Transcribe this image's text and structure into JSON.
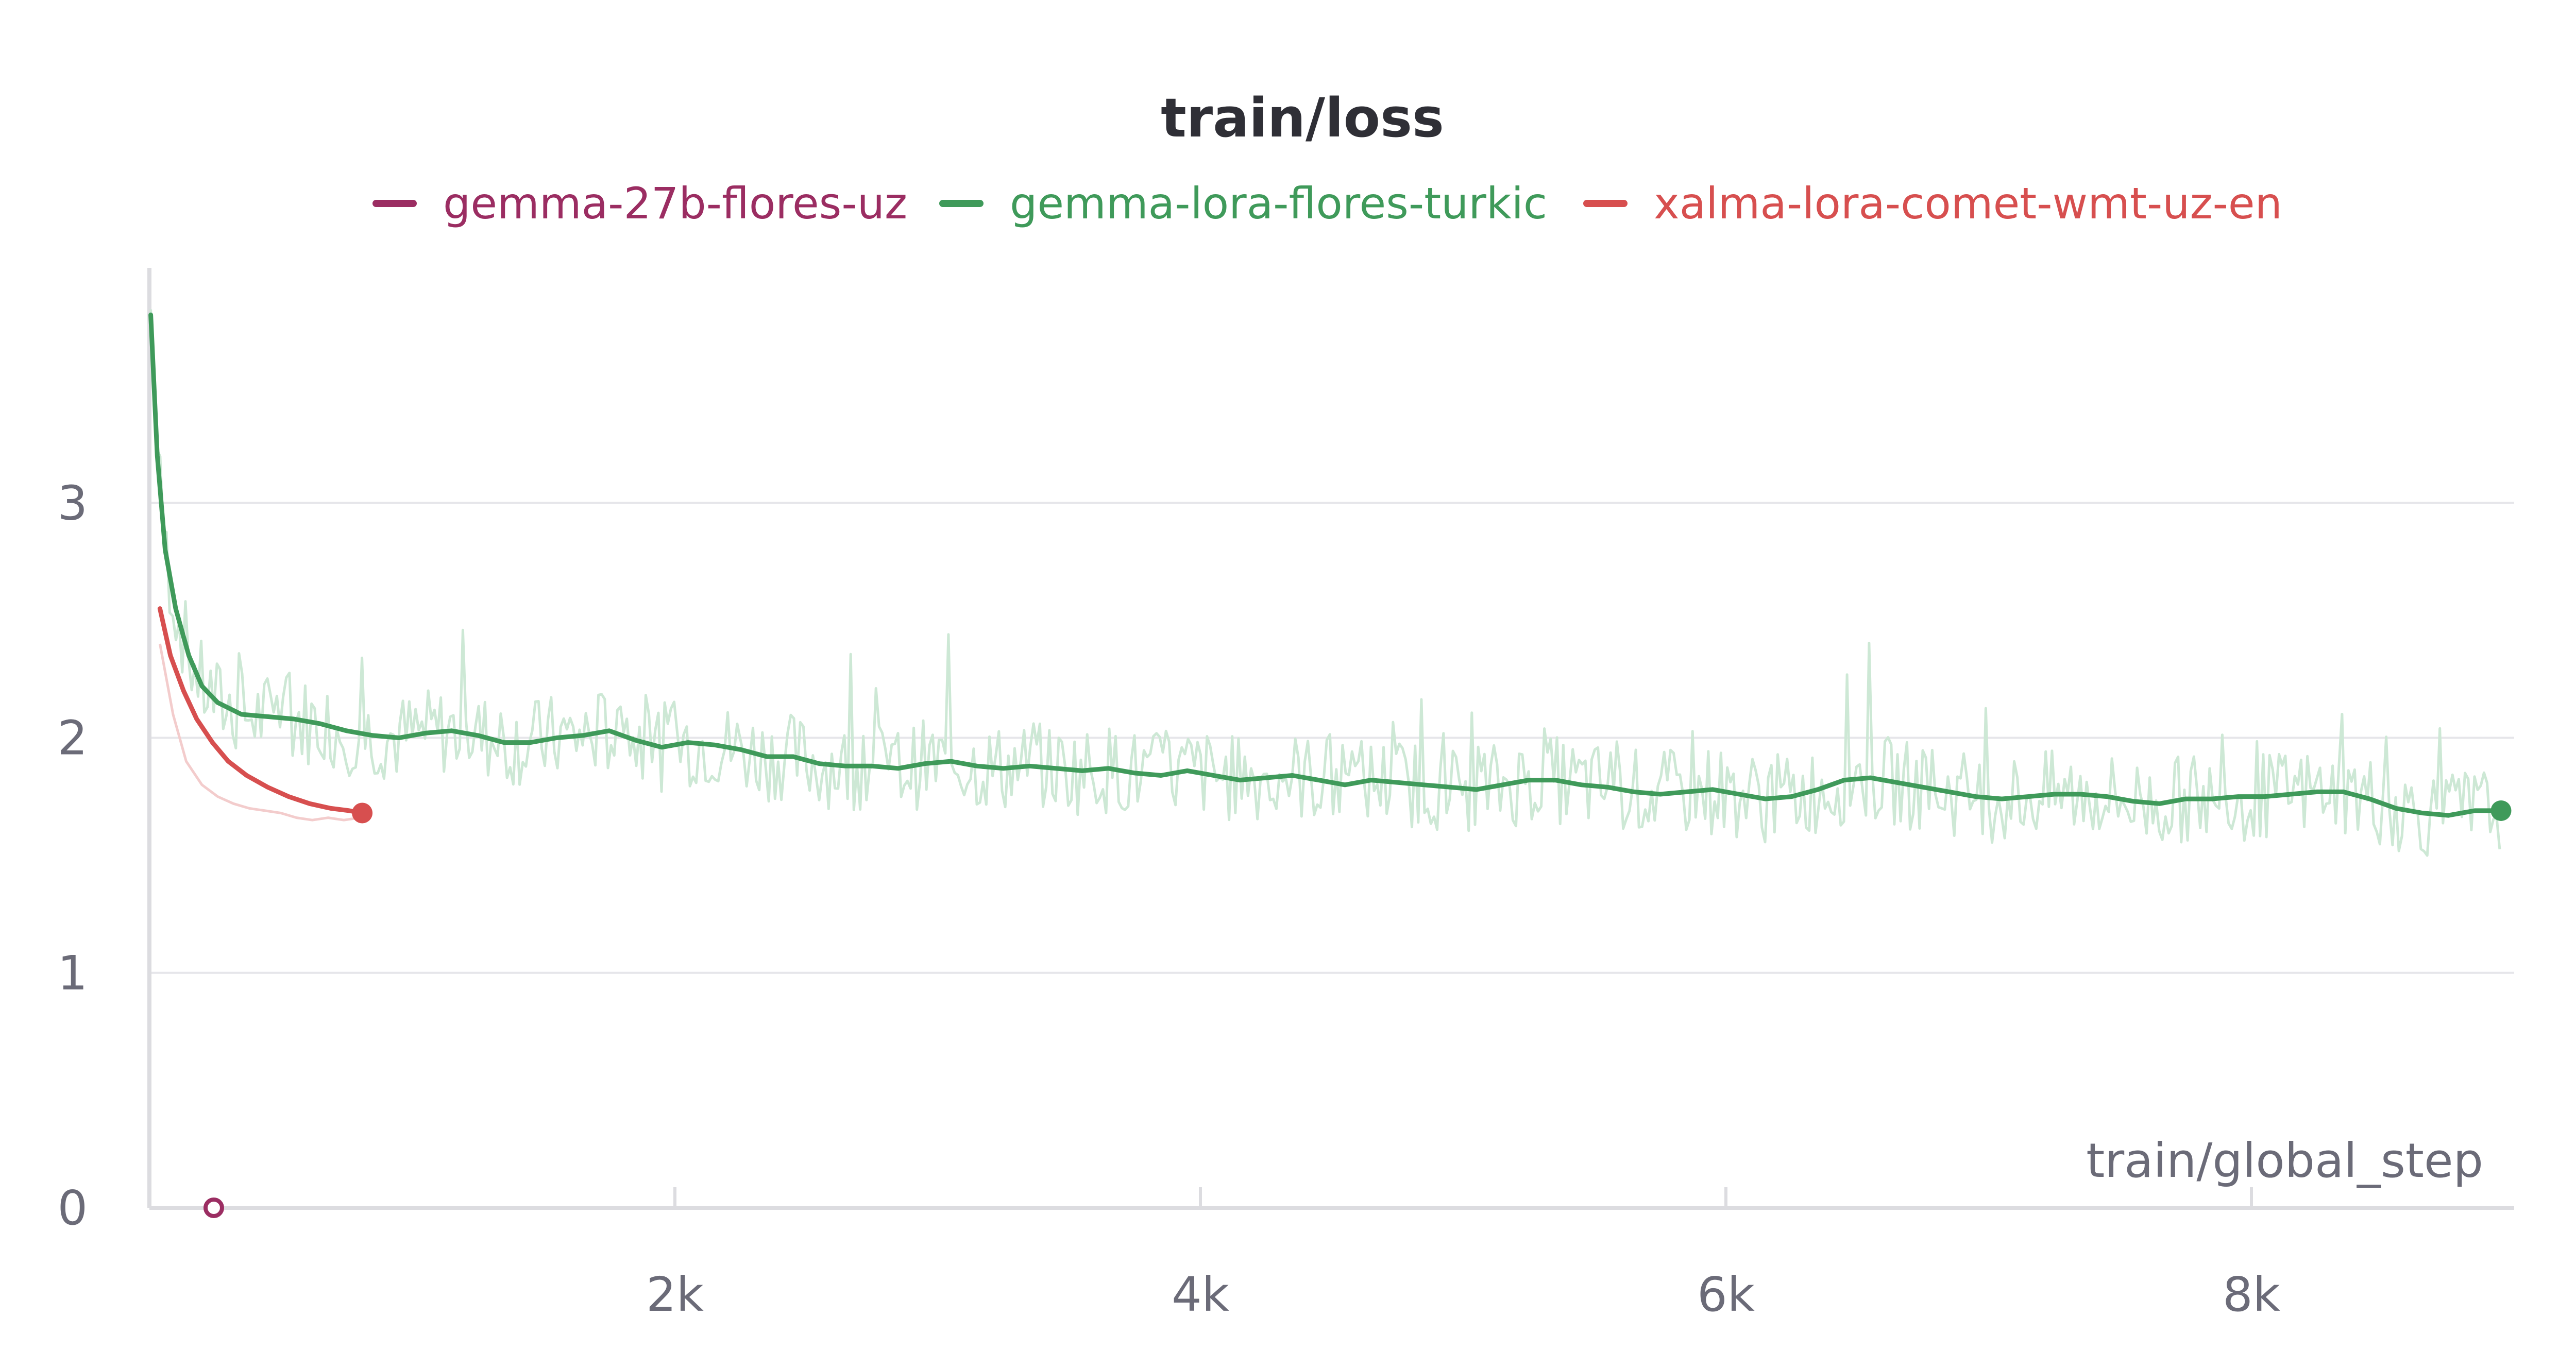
{
  "chart_data": {
    "type": "line",
    "title": "train/loss",
    "xlabel": "train/global_step",
    "ylabel": "",
    "xlim": [
      0,
      9000
    ],
    "ylim": [
      0,
      4
    ],
    "x_ticks": [
      {
        "value": 2000,
        "label": "2k"
      },
      {
        "value": 4000,
        "label": "4k"
      },
      {
        "value": 6000,
        "label": "6k"
      },
      {
        "value": 8000,
        "label": "8k"
      }
    ],
    "y_ticks": [
      {
        "value": 0,
        "label": "0"
      },
      {
        "value": 1,
        "label": "1"
      },
      {
        "value": 2,
        "label": "2"
      },
      {
        "value": 3,
        "label": "3"
      }
    ],
    "grid": true,
    "legend_position": "top",
    "series": [
      {
        "name": "gemma-27b-flores-uz",
        "color": "#9b2d62",
        "points": [
          [
            245,
            0
          ]
        ],
        "raw": []
      },
      {
        "name": "gemma-lora-flores-turkic",
        "color": "#3f9a5a",
        "raw_color": "#cde8d5",
        "points": [
          [
            5,
            3.8
          ],
          [
            30,
            3.2
          ],
          [
            60,
            2.8
          ],
          [
            100,
            2.55
          ],
          [
            150,
            2.35
          ],
          [
            200,
            2.22
          ],
          [
            260,
            2.15
          ],
          [
            350,
            2.1
          ],
          [
            450,
            2.09
          ],
          [
            550,
            2.08
          ],
          [
            650,
            2.06
          ],
          [
            750,
            2.03
          ],
          [
            850,
            2.01
          ],
          [
            950,
            2.0
          ],
          [
            1050,
            2.02
          ],
          [
            1150,
            2.03
          ],
          [
            1250,
            2.01
          ],
          [
            1350,
            1.98
          ],
          [
            1450,
            1.98
          ],
          [
            1550,
            2.0
          ],
          [
            1650,
            2.01
          ],
          [
            1750,
            2.03
          ],
          [
            1850,
            1.99
          ],
          [
            1950,
            1.96
          ],
          [
            2050,
            1.98
          ],
          [
            2150,
            1.97
          ],
          [
            2250,
            1.95
          ],
          [
            2350,
            1.92
          ],
          [
            2450,
            1.92
          ],
          [
            2550,
            1.89
          ],
          [
            2650,
            1.88
          ],
          [
            2750,
            1.88
          ],
          [
            2850,
            1.87
          ],
          [
            2950,
            1.89
          ],
          [
            3050,
            1.9
          ],
          [
            3150,
            1.88
          ],
          [
            3250,
            1.87
          ],
          [
            3350,
            1.88
          ],
          [
            3450,
            1.87
          ],
          [
            3550,
            1.86
          ],
          [
            3650,
            1.87
          ],
          [
            3750,
            1.85
          ],
          [
            3850,
            1.84
          ],
          [
            3950,
            1.86
          ],
          [
            4050,
            1.84
          ],
          [
            4150,
            1.82
          ],
          [
            4250,
            1.83
          ],
          [
            4350,
            1.84
          ],
          [
            4450,
            1.82
          ],
          [
            4550,
            1.8
          ],
          [
            4650,
            1.82
          ],
          [
            4750,
            1.81
          ],
          [
            4850,
            1.8
          ],
          [
            4950,
            1.79
          ],
          [
            5050,
            1.78
          ],
          [
            5150,
            1.8
          ],
          [
            5250,
            1.82
          ],
          [
            5350,
            1.82
          ],
          [
            5450,
            1.8
          ],
          [
            5550,
            1.79
          ],
          [
            5650,
            1.77
          ],
          [
            5750,
            1.76
          ],
          [
            5850,
            1.77
          ],
          [
            5950,
            1.78
          ],
          [
            6050,
            1.76
          ],
          [
            6150,
            1.74
          ],
          [
            6250,
            1.75
          ],
          [
            6350,
            1.78
          ],
          [
            6450,
            1.82
          ],
          [
            6550,
            1.83
          ],
          [
            6650,
            1.81
          ],
          [
            6750,
            1.79
          ],
          [
            6850,
            1.77
          ],
          [
            6950,
            1.75
          ],
          [
            7050,
            1.74
          ],
          [
            7150,
            1.75
          ],
          [
            7250,
            1.76
          ],
          [
            7350,
            1.76
          ],
          [
            7450,
            1.75
          ],
          [
            7550,
            1.73
          ],
          [
            7650,
            1.72
          ],
          [
            7750,
            1.74
          ],
          [
            7850,
            1.74
          ],
          [
            7950,
            1.75
          ],
          [
            8050,
            1.75
          ],
          [
            8150,
            1.76
          ],
          [
            8250,
            1.77
          ],
          [
            8350,
            1.77
          ],
          [
            8450,
            1.74
          ],
          [
            8550,
            1.7
          ],
          [
            8650,
            1.68
          ],
          [
            8750,
            1.67
          ],
          [
            8850,
            1.69
          ],
          [
            8950,
            1.69
          ]
        ]
      },
      {
        "name": "xalma-lora-comet-wmt-uz-en",
        "color": "#d74f4f",
        "raw_color": "#f3cccc",
        "points": [
          [
            40,
            2.55
          ],
          [
            80,
            2.35
          ],
          [
            130,
            2.2
          ],
          [
            180,
            2.08
          ],
          [
            240,
            1.98
          ],
          [
            300,
            1.9
          ],
          [
            370,
            1.84
          ],
          [
            450,
            1.79
          ],
          [
            530,
            1.75
          ],
          [
            610,
            1.72
          ],
          [
            690,
            1.7
          ],
          [
            760,
            1.69
          ],
          [
            810,
            1.68
          ]
        ],
        "raw": [
          [
            40,
            2.4
          ],
          [
            90,
            2.1
          ],
          [
            140,
            1.9
          ],
          [
            200,
            1.8
          ],
          [
            260,
            1.75
          ],
          [
            320,
            1.72
          ],
          [
            380,
            1.7
          ],
          [
            440,
            1.69
          ],
          [
            500,
            1.68
          ],
          [
            560,
            1.66
          ],
          [
            620,
            1.65
          ],
          [
            680,
            1.66
          ],
          [
            740,
            1.65
          ],
          [
            800,
            1.66
          ]
        ]
      }
    ]
  }
}
